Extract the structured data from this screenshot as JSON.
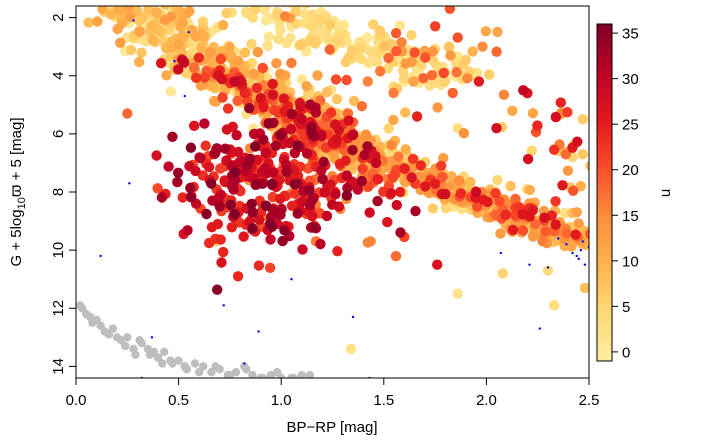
{
  "chart_data": {
    "type": "scatter",
    "title": "",
    "xlabel": "BP−RP [mag]",
    "ylabel_parts": {
      "pre": "G + 5log",
      "sub": "10",
      "var": "ϖ",
      "post": " + 5 [mag]"
    },
    "xlim": [
      0.0,
      2.5
    ],
    "ylim": [
      14.4,
      1.6
    ],
    "y_inverted": true,
    "x_ticks": [
      "0.0",
      "0.5",
      "1.0",
      "1.5",
      "2.0",
      "2.5"
    ],
    "x_tick_values": [
      0.0,
      0.5,
      1.0,
      1.5,
      2.0,
      2.5
    ],
    "y_ticks": [
      "2",
      "4",
      "6",
      "8",
      "10",
      "12",
      "14"
    ],
    "y_tick_values": [
      2,
      4,
      6,
      8,
      10,
      12,
      14
    ],
    "grid": false,
    "colorbar": {
      "label": "u",
      "range": [
        -1,
        36
      ],
      "ticks": [
        "0",
        "5",
        "10",
        "15",
        "20",
        "25",
        "30",
        "35"
      ],
      "tick_values": [
        0,
        5,
        10,
        15,
        20,
        25,
        30,
        35
      ],
      "colors": [
        "#FFEDA0",
        "#FED976",
        "#FEB24C",
        "#FD8D3C",
        "#FC4E2A",
        "#E31A1C",
        "#BD0026",
        "#800026"
      ]
    },
    "colors": {
      "isochrone": "#BEBEBE",
      "white_dwarfs": "#BEBEBE",
      "field_points": "#0000FF"
    },
    "isochrone": {
      "x": [
        0.26,
        0.29,
        0.33,
        0.38,
        0.45,
        0.52
      ],
      "y": [
        1.6,
        1.85,
        2.15,
        2.45,
        2.75,
        3.0
      ]
    },
    "white_dwarfs": {
      "x": [
        0.02,
        0.05,
        0.08,
        0.03,
        0.1,
        0.14,
        0.18,
        0.22,
        0.25,
        0.28,
        0.32,
        0.36,
        0.4,
        0.43,
        0.47,
        0.5,
        0.54,
        0.58,
        0.62,
        0.66,
        0.7,
        0.74,
        0.78,
        0.82,
        0.86,
        0.9,
        0.95,
        1.0,
        1.05,
        1.1,
        0.07,
        0.16,
        0.24,
        0.31,
        0.38,
        0.46,
        0.53,
        0.6,
        0.68,
        0.75,
        0.83,
        0.91,
        0.98,
        1.06,
        1.14,
        0.12,
        0.2,
        0.29,
        0.35,
        0.42
      ],
      "y": [
        11.9,
        12.2,
        12.5,
        12.0,
        12.4,
        12.8,
        12.7,
        13.1,
        13.0,
        13.4,
        13.2,
        13.6,
        13.7,
        13.5,
        13.9,
        13.8,
        14.1,
        13.9,
        14.0,
        14.2,
        14.1,
        14.3,
        14.2,
        14.0,
        14.3,
        14.4,
        14.3,
        14.4,
        14.4,
        14.3,
        12.3,
        12.9,
        13.3,
        13.1,
        13.5,
        13.8,
        14.0,
        14.2,
        14.0,
        14.3,
        14.1,
        14.4,
        14.2,
        14.4,
        14.3,
        12.6,
        13.0,
        13.6,
        13.4,
        13.9
      ]
    },
    "field_points": {
      "x": [
        0.28,
        0.12,
        0.48,
        0.53,
        0.26,
        1.05,
        0.72,
        0.82,
        0.32,
        2.07,
        2.21,
        2.35,
        2.45,
        2.48,
        2.42,
        2.3,
        2.5,
        2.46,
        2.39,
        2.44,
        2.47,
        0.55,
        1.43,
        1.35,
        0.89,
        2.26,
        0.37
      ],
      "y": [
        2.1,
        10.2,
        3.5,
        4.7,
        7.7,
        11.0,
        11.9,
        13.9,
        14.4,
        10.1,
        10.5,
        9.6,
        10.3,
        10.5,
        10.1,
        10.6,
        9.9,
        10.0,
        9.8,
        10.2,
        9.7,
        2.5,
        14.4,
        12.3,
        12.8,
        12.7,
        13.0
      ]
    },
    "series": {
      "name": "",
      "components": [
        {
          "type": "band",
          "n": 520,
          "seed": 11,
          "x0": 0.25,
          "y0": 1.6,
          "x1": 1.5,
          "y1": 7.2,
          "width": 0.55,
          "c0": 0,
          "c1": 13
        },
        {
          "type": "band",
          "n": 340,
          "seed": 23,
          "x0": 1.2,
          "y0": 6.2,
          "x1": 2.5,
          "y1": 9.8,
          "width": 0.35,
          "c0": 1,
          "c1": 14
        },
        {
          "type": "band",
          "n": 180,
          "seed": 31,
          "x0": 0.9,
          "y0": 1.6,
          "x1": 1.9,
          "y1": 4.2,
          "width": 0.55,
          "c0": 0,
          "c1": 6
        },
        {
          "type": "blob",
          "n": 230,
          "seed": 47,
          "cx": 0.85,
          "cy": 7.7,
          "sx": 0.2,
          "sy": 1.15,
          "c0": 20,
          "c1": 36
        },
        {
          "type": "blob",
          "n": 150,
          "seed": 53,
          "cx": 1.2,
          "cy": 7.2,
          "sx": 0.22,
          "sy": 1.1,
          "c0": 14,
          "c1": 34
        },
        {
          "type": "band",
          "n": 110,
          "seed": 61,
          "x0": 0.55,
          "y0": 3.4,
          "x1": 1.3,
          "y1": 6.4,
          "width": 0.35,
          "c0": 14,
          "c1": 30
        },
        {
          "type": "band",
          "n": 90,
          "seed": 67,
          "x0": 1.4,
          "y0": 6.6,
          "x1": 2.45,
          "y1": 9.6,
          "width": 0.3,
          "c0": 12,
          "c1": 28
        },
        {
          "type": "blob",
          "n": 50,
          "seed": 71,
          "cx": 1.6,
          "cy": 3.6,
          "sx": 0.35,
          "sy": 1.0,
          "c0": 6,
          "c1": 22
        },
        {
          "type": "blob",
          "n": 40,
          "seed": 79,
          "cx": 2.3,
          "cy": 6.5,
          "sx": 0.15,
          "sy": 1.1,
          "c0": 4,
          "c1": 28
        }
      ],
      "extra_points": [
        {
          "x": 0.25,
          "y": 5.3,
          "u": 18
        },
        {
          "x": 0.47,
          "y": 6.1,
          "u": 33
        },
        {
          "x": 0.79,
          "y": 10.9,
          "u": 24
        },
        {
          "x": 1.76,
          "y": 10.5,
          "u": 27
        },
        {
          "x": 2.18,
          "y": 4.5,
          "u": 30
        },
        {
          "x": 2.2,
          "y": 4.6,
          "u": 27
        },
        {
          "x": 1.86,
          "y": 5.8,
          "u": 3
        },
        {
          "x": 1.95,
          "y": 8.0,
          "u": 29
        },
        {
          "x": 2.47,
          "y": 5.5,
          "u": 6
        },
        {
          "x": 2.46,
          "y": 7.8,
          "u": 10
        },
        {
          "x": 2.42,
          "y": 6.8,
          "u": 5
        },
        {
          "x": 2.48,
          "y": 11.3,
          "u": 8
        },
        {
          "x": 2.3,
          "y": 10.7,
          "u": 4
        },
        {
          "x": 2.44,
          "y": 8.7,
          "u": 12
        },
        {
          "x": 1.65,
          "y": 3.2,
          "u": 20
        },
        {
          "x": 1.58,
          "y": 8.0,
          "u": 25
        },
        {
          "x": 1.34,
          "y": 13.4,
          "u": 2
        },
        {
          "x": 1.86,
          "y": 11.5,
          "u": 2
        },
        {
          "x": 2.33,
          "y": 11.9,
          "u": 3
        },
        {
          "x": 2.08,
          "y": 10.8,
          "u": 5
        },
        {
          "x": 0.68,
          "y": 9.7,
          "u": 5
        }
      ]
    }
  }
}
